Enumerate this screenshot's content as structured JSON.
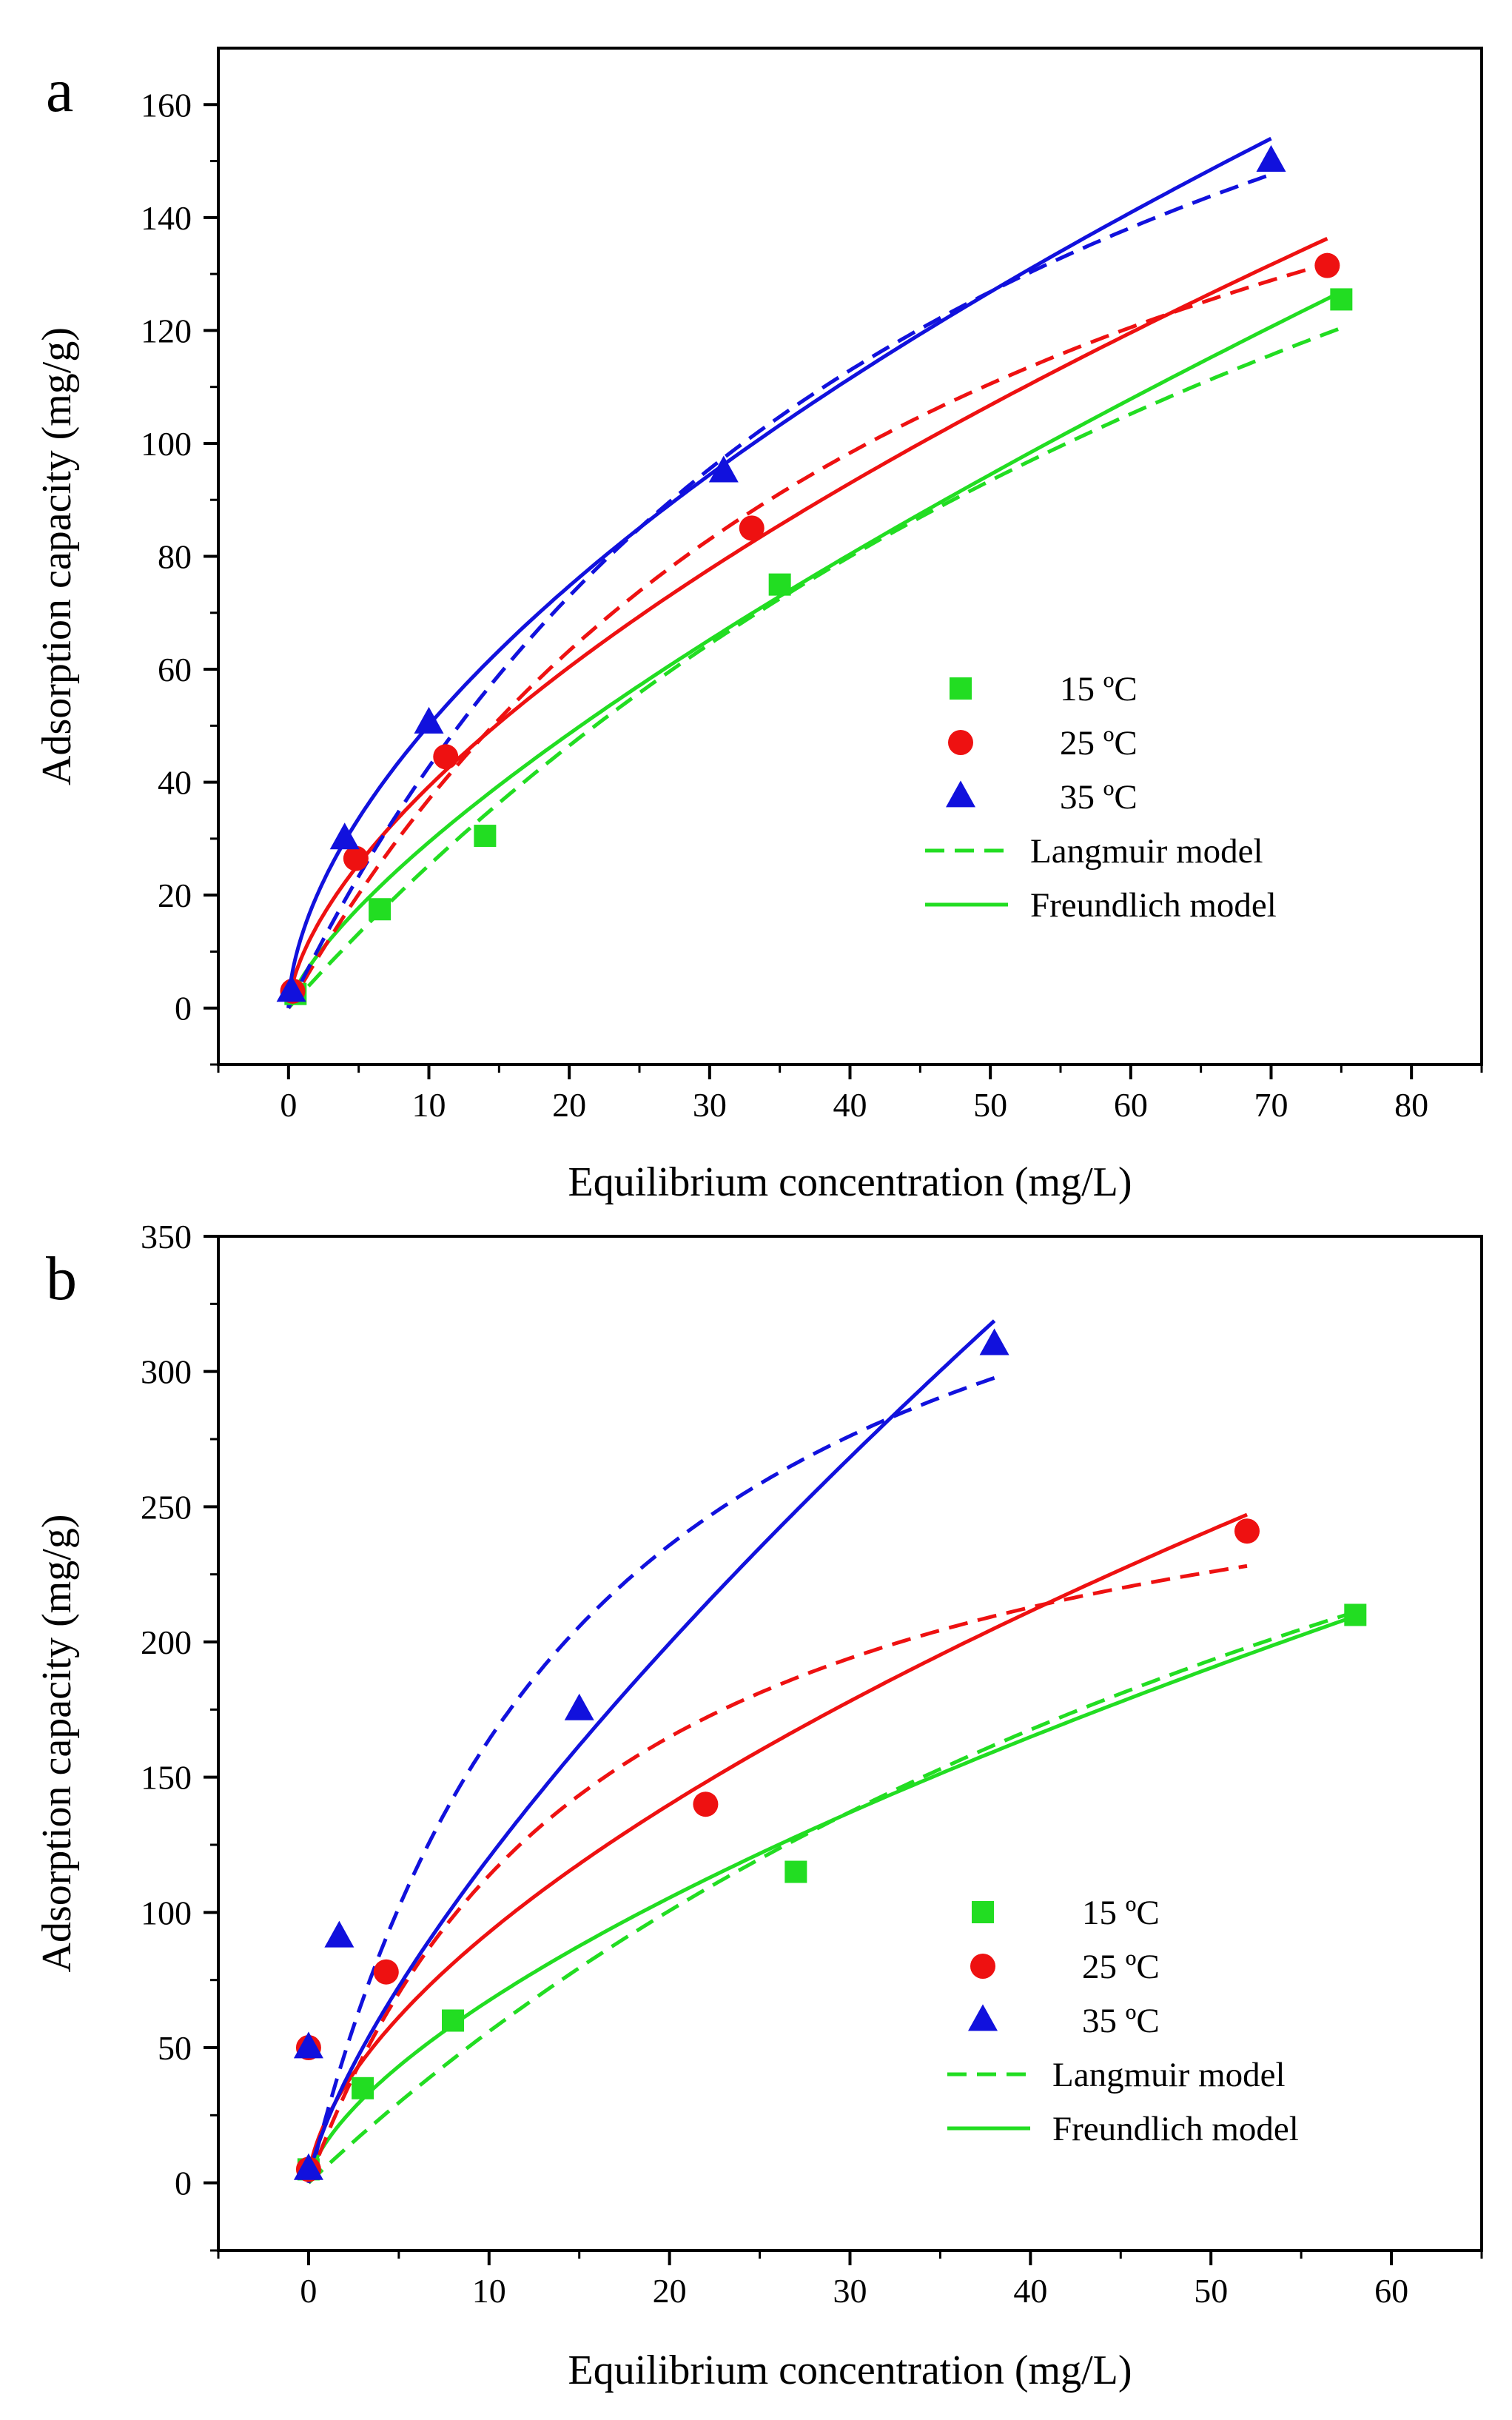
{
  "chart_data": [
    {
      "type": "scatter",
      "panel_label": "a",
      "xlabel": "Equilibrium concentration (mg/L)",
      "ylabel": "Adsorption capacity (mg/g)",
      "xlim": [
        -5,
        85
      ],
      "ylim": [
        -10,
        170
      ],
      "xticks": [
        0,
        10,
        20,
        30,
        40,
        50,
        60,
        70,
        80
      ],
      "yticks": [
        0,
        20,
        40,
        60,
        80,
        100,
        120,
        140,
        160
      ],
      "legend_position": "center-right",
      "legend": [
        {
          "label": "15 ºC",
          "kind": "marker",
          "marker": "square",
          "color": "#22dd22"
        },
        {
          "label": "25 ºC",
          "kind": "marker",
          "marker": "circle",
          "color": "#ee1111"
        },
        {
          "label": "35 ºC",
          "kind": "marker",
          "marker": "triangle",
          "color": "#1111dd"
        },
        {
          "label": "Langmuir model",
          "kind": "line",
          "dashed": true,
          "color": "#22dd22"
        },
        {
          "label": "Freundlich model",
          "kind": "line",
          "dashed": false,
          "color": "#22dd22"
        }
      ],
      "series": [
        {
          "name": "15 ºC",
          "marker": "square",
          "color": "#22dd22",
          "points": [
            [
              0.5,
              2.5
            ],
            [
              6.5,
              17.5
            ],
            [
              14,
              30.5
            ],
            [
              35,
              75
            ],
            [
              75,
              125.5
            ]
          ],
          "langmuir": {
            "qm": 286,
            "kl": 0.0097,
            "xmax": 75
          },
          "freundlich": {
            "kf": 5.52,
            "n": 0.726,
            "xmax": 75
          }
        },
        {
          "name": "25 ºC",
          "marker": "circle",
          "color": "#ee1111",
          "points": [
            [
              0.3,
              3
            ],
            [
              4.8,
              26.5
            ],
            [
              11.2,
              44.5
            ],
            [
              33,
              85
            ],
            [
              74,
              131.5
            ]
          ],
          "langmuir": {
            "qm": 220,
            "kl": 0.0202,
            "xmax": 74
          },
          "freundlich": {
            "kf": 9.37,
            "n": 0.622,
            "xmax": 74
          }
        },
        {
          "name": "35 ºC",
          "marker": "triangle",
          "color": "#1111dd",
          "points": [
            [
              0.2,
              3
            ],
            [
              4,
              30
            ],
            [
              10,
              50.5
            ],
            [
              31,
              95
            ],
            [
              70,
              150
            ]
          ],
          "langmuir": {
            "qm": 250,
            "kl": 0.0206,
            "xmax": 70
          },
          "freundlich": {
            "kf": 13.27,
            "n": 0.577,
            "xmax": 70
          }
        }
      ]
    },
    {
      "type": "scatter",
      "panel_label": "b",
      "xlabel": "Equilibrium concentration (mg/L)",
      "ylabel": "Adsorption capacity (mg/g)",
      "xlim": [
        -5,
        65
      ],
      "ylim": [
        -25,
        350
      ],
      "xticks": [
        0,
        10,
        20,
        30,
        40,
        50,
        60
      ],
      "yticks": [
        0,
        50,
        100,
        150,
        200,
        250,
        300,
        350
      ],
      "legend_position": "lower-right",
      "legend": [
        {
          "label": "15 ºC",
          "kind": "marker",
          "marker": "square",
          "color": "#22dd22"
        },
        {
          "label": "25 ºC",
          "kind": "marker",
          "marker": "circle",
          "color": "#ee1111"
        },
        {
          "label": "35 ºC",
          "kind": "marker",
          "marker": "triangle",
          "color": "#1111dd"
        },
        {
          "label": "Langmuir model",
          "kind": "line",
          "dashed": true,
          "color": "#22dd22"
        },
        {
          "label": "Freundlich model",
          "kind": "line",
          "dashed": false,
          "color": "#22dd22"
        }
      ],
      "series": [
        {
          "name": "15 ºC",
          "marker": "square",
          "color": "#22dd22",
          "points": [
            [
              0,
              5
            ],
            [
              3,
              35
            ],
            [
              8,
              60
            ],
            [
              27,
              115
            ],
            [
              58,
              210
            ]
          ],
          "langmuir": {
            "qm": 500,
            "kl": 0.0126,
            "xmax": 58
          },
          "freundlich": {
            "kf": 15.27,
            "n": 0.645,
            "xmax": 58
          }
        },
        {
          "name": "25 ºC",
          "marker": "circle",
          "color": "#ee1111",
          "points": [
            [
              0,
              5
            ],
            [
              0,
              50
            ],
            [
              4.3,
              78
            ],
            [
              22,
              140
            ],
            [
              52,
              241
            ]
          ],
          "langmuir": {
            "qm": 300,
            "kl": 0.061,
            "xmax": 52
          },
          "freundlich": {
            "kf": 23.54,
            "n": 0.595,
            "xmax": 52
          }
        },
        {
          "name": "35 ºC",
          "marker": "triangle",
          "color": "#1111dd",
          "points": [
            [
              0,
              5
            ],
            [
              0,
              50
            ],
            [
              1.7,
              91
            ],
            [
              15,
              175
            ],
            [
              38,
              310
            ]
          ],
          "langmuir": {
            "qm": 420,
            "kl": 0.064,
            "xmax": 38
          },
          "freundlich": {
            "kf": 22.4,
            "n": 0.73,
            "xmax": 38
          }
        }
      ]
    }
  ]
}
